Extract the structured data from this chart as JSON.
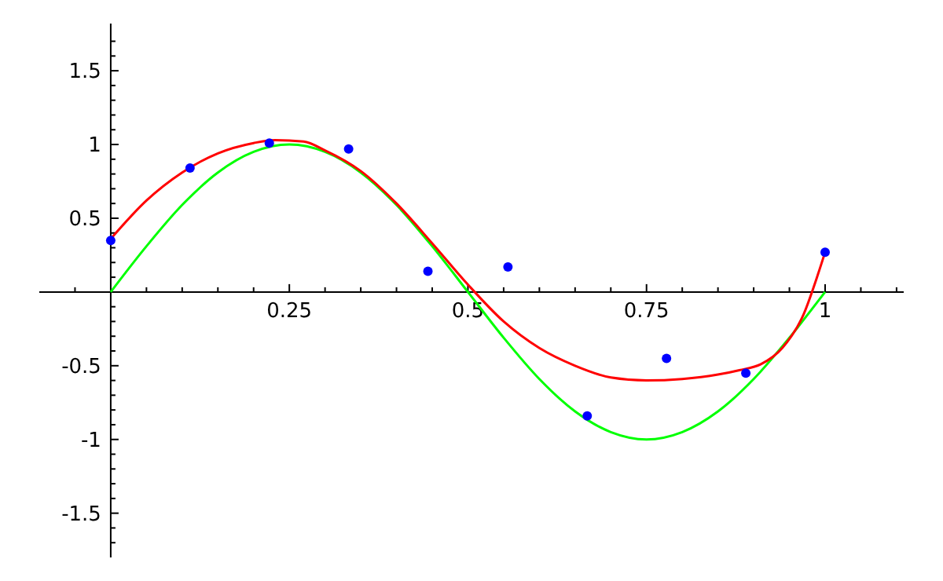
{
  "chart_data": {
    "type": "line",
    "xlim": [
      -0.1,
      1.11
    ],
    "ylim": [
      -1.8,
      1.82
    ],
    "xticks": [
      {
        "value": 0.05,
        "label": null
      },
      {
        "value": 0.1,
        "label": null
      },
      {
        "value": 0.15,
        "label": null
      },
      {
        "value": 0.2,
        "label": null
      },
      0.25,
      {
        "value": 0.3,
        "label": null
      },
      {
        "value": 0.35,
        "label": null
      },
      {
        "value": 0.4,
        "label": null
      },
      {
        "value": 0.45,
        "label": null
      },
      0.5,
      {
        "value": 0.55,
        "label": null
      },
      {
        "value": 0.6,
        "label": null
      },
      {
        "value": 0.65,
        "label": null
      },
      {
        "value": 0.7,
        "label": null
      },
      0.75,
      {
        "value": 0.8,
        "label": null
      },
      {
        "value": 0.85,
        "label": null
      },
      {
        "value": 0.9,
        "label": null
      },
      {
        "value": 0.95,
        "label": null
      },
      1,
      {
        "value": 1.05,
        "label": null
      },
      {
        "value": 1.1,
        "label": null
      },
      {
        "value": -0.05,
        "label": null
      }
    ],
    "yticks": [
      -1.5,
      -1,
      -0.5,
      0.5,
      1,
      1.5,
      {
        "value": -1.7,
        "label": null
      },
      {
        "value": -1.6,
        "label": null
      },
      {
        "value": -1.4,
        "label": null
      },
      {
        "value": -1.3,
        "label": null
      },
      {
        "value": -1.2,
        "label": null
      },
      {
        "value": -1.1,
        "label": null
      },
      {
        "value": -0.9,
        "label": null
      },
      {
        "value": -0.8,
        "label": null
      },
      {
        "value": -0.7,
        "label": null
      },
      {
        "value": -0.6,
        "label": null
      },
      {
        "value": -0.4,
        "label": null
      },
      {
        "value": -0.3,
        "label": null
      },
      {
        "value": -0.2,
        "label": null
      },
      {
        "value": -0.1,
        "label": null
      },
      {
        "value": 0.1,
        "label": null
      },
      {
        "value": 0.2,
        "label": null
      },
      {
        "value": 0.3,
        "label": null
      },
      {
        "value": 0.4,
        "label": null
      },
      {
        "value": 0.6,
        "label": null
      },
      {
        "value": 0.7,
        "label": null
      },
      {
        "value": 0.8,
        "label": null
      },
      {
        "value": 0.9,
        "label": null
      },
      {
        "value": 1.1,
        "label": null
      },
      {
        "value": 1.2,
        "label": null
      },
      {
        "value": 1.3,
        "label": null
      },
      {
        "value": 1.4,
        "label": null
      },
      {
        "value": 1.6,
        "label": null
      },
      {
        "value": 1.7,
        "label": null
      }
    ],
    "grid": false,
    "series": [
      {
        "color": "#00ff00",
        "marker": "none",
        "x": [
          0,
          0.05,
          0.1,
          0.15,
          0.2,
          0.25,
          0.3,
          0.35,
          0.4,
          0.45,
          0.5,
          0.55,
          0.6,
          0.65,
          0.7,
          0.75,
          0.8,
          0.85,
          0.9,
          0.95,
          1
        ],
        "values": [
          0,
          0.31,
          0.59,
          0.81,
          0.95,
          1,
          0.95,
          0.81,
          0.59,
          0.31,
          0,
          -0.31,
          -0.59,
          -0.81,
          -0.95,
          -1,
          -0.95,
          -0.81,
          -0.59,
          -0.31,
          0
        ]
      },
      {
        "color": "#ff0000",
        "marker": "none",
        "x": [
          0,
          0.05,
          0.1,
          0.15,
          0.2,
          0.23,
          0.27,
          0.3,
          0.35,
          0.4,
          0.45,
          0.5,
          0.55,
          0.6,
          0.65,
          0.7,
          0.75,
          0.8,
          0.85,
          0.88,
          0.91,
          0.94,
          0.97,
          0.99,
          1
        ],
        "values": [
          0.36,
          0.62,
          0.81,
          0.94,
          1.01,
          1.03,
          1.02,
          0.96,
          0.82,
          0.6,
          0.33,
          0.05,
          -0.2,
          -0.38,
          -0.5,
          -0.58,
          -0.6,
          -0.59,
          -0.56,
          -0.53,
          -0.49,
          -0.38,
          -0.15,
          0.12,
          0.27
        ]
      },
      {
        "type": "scatter",
        "color": "#0000ff",
        "marker": "circle",
        "x": [
          0,
          0.111,
          0.222,
          0.333,
          0.444,
          0.556,
          0.667,
          0.778,
          0.889,
          1
        ],
        "values": [
          0.35,
          0.84,
          1.01,
          0.97,
          0.14,
          0.17,
          -0.84,
          -0.45,
          -0.55,
          0.27
        ]
      }
    ]
  }
}
